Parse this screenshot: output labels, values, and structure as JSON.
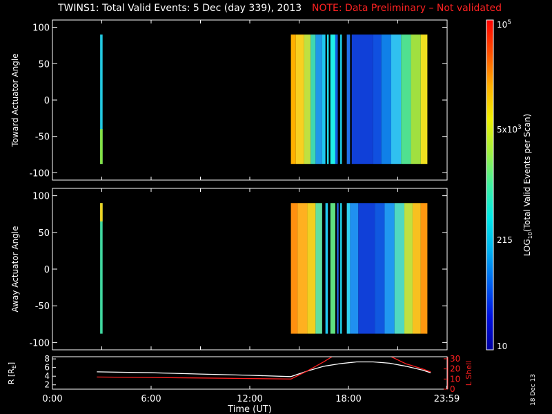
{
  "title": {
    "main": "TWINS1: Total Valid Events:  5 Dec (day 339), 2013",
    "note": "NOTE: Data Preliminary – Not validated"
  },
  "date_stamp": "18 Dec 13",
  "chart_data": [
    {
      "type": "heatmap",
      "panel": "toward",
      "ylabel": "Toward Actuator Angle",
      "ylim": [
        -110,
        110
      ],
      "yticks": [
        100,
        50,
        0,
        -50,
        -100
      ],
      "xlim": [
        0,
        24
      ],
      "bands": [
        {
          "x0": 2.9,
          "x1": 3.05,
          "y0": -88,
          "y1": 90,
          "color": "#22c8e0",
          "bottom_color": "#88e040"
        },
        {
          "x0": 14.5,
          "x1": 14.8,
          "y0": -88,
          "y1": 90,
          "color": "#ffb000"
        },
        {
          "x0": 14.8,
          "x1": 15.3,
          "y0": -88,
          "y1": 90,
          "color": "#f8d020"
        },
        {
          "x0": 15.3,
          "x1": 15.7,
          "y0": -88,
          "y1": 90,
          "color": "#c0e040"
        },
        {
          "x0": 15.7,
          "x1": 16.0,
          "y0": -88,
          "y1": 90,
          "color": "#40d8b0"
        },
        {
          "x0": 16.0,
          "x1": 16.4,
          "y0": -88,
          "y1": 90,
          "color": "#2098e8"
        },
        {
          "x0": 16.4,
          "x1": 16.6,
          "y0": -88,
          "y1": 90,
          "color": "#20c8f0"
        },
        {
          "x0": 16.7,
          "x1": 16.8,
          "y0": -88,
          "y1": 90,
          "color": "#20e0f0"
        },
        {
          "x0": 16.9,
          "x1": 17.2,
          "y0": -88,
          "y1": 90,
          "color": "#20f0e8"
        },
        {
          "x0": 17.2,
          "x1": 17.35,
          "y0": -88,
          "y1": 90,
          "color": "#1060e0"
        },
        {
          "x0": 17.5,
          "x1": 17.6,
          "y0": -88,
          "y1": 90,
          "color": "#20d8f0"
        },
        {
          "x0": 17.9,
          "x1": 18.1,
          "y0": -88,
          "y1": 90,
          "color": "#2070e8"
        },
        {
          "x0": 18.2,
          "x1": 19.5,
          "y0": -88,
          "y1": 90,
          "color": "#1040d8"
        },
        {
          "x0": 19.5,
          "x1": 20.0,
          "y0": -88,
          "y1": 90,
          "color": "#1050e0"
        },
        {
          "x0": 20.0,
          "x1": 20.6,
          "y0": -88,
          "y1": 90,
          "color": "#1080e8"
        },
        {
          "x0": 20.6,
          "x1": 21.2,
          "y0": -88,
          "y1": 90,
          "color": "#30c0f0"
        },
        {
          "x0": 21.2,
          "x1": 21.8,
          "y0": -88,
          "y1": 90,
          "color": "#50e090"
        },
        {
          "x0": 21.8,
          "x1": 22.4,
          "y0": -88,
          "y1": 90,
          "color": "#a0e040"
        },
        {
          "x0": 22.4,
          "x1": 22.8,
          "y0": -88,
          "y1": 90,
          "color": "#f0e020"
        }
      ]
    },
    {
      "type": "heatmap",
      "panel": "away",
      "ylabel": "Away Actuator Angle",
      "ylim": [
        -110,
        110
      ],
      "yticks": [
        100,
        50,
        0,
        -50,
        -100
      ],
      "xlim": [
        0,
        24
      ],
      "bands": [
        {
          "x0": 2.9,
          "x1": 3.05,
          "y0": -88,
          "y1": 90,
          "color": "#40d8a0",
          "top_color": "#f0d020"
        },
        {
          "x0": 14.5,
          "x1": 14.9,
          "y0": -88,
          "y1": 90,
          "color": "#ff9010"
        },
        {
          "x0": 14.9,
          "x1": 15.5,
          "y0": -88,
          "y1": 90,
          "color": "#ffb020"
        },
        {
          "x0": 15.5,
          "x1": 16.0,
          "y0": -88,
          "y1": 90,
          "color": "#f0d020"
        },
        {
          "x0": 16.0,
          "x1": 16.4,
          "y0": -88,
          "y1": 90,
          "color": "#60e0a0"
        },
        {
          "x0": 16.6,
          "x1": 16.75,
          "y0": -88,
          "y1": 90,
          "color": "#20c8f0"
        },
        {
          "x0": 16.9,
          "x1": 17.2,
          "y0": -88,
          "y1": 90,
          "color": "#60e080"
        },
        {
          "x0": 17.3,
          "x1": 17.4,
          "y0": -88,
          "y1": 90,
          "color": "#2060e0"
        },
        {
          "x0": 17.5,
          "x1": 17.6,
          "y0": -88,
          "y1": 90,
          "color": "#20d8f0"
        },
        {
          "x0": 17.9,
          "x1": 18.1,
          "y0": -88,
          "y1": 90,
          "color": "#30d0f0"
        },
        {
          "x0": 18.1,
          "x1": 18.6,
          "y0": -88,
          "y1": 90,
          "color": "#2090f0"
        },
        {
          "x0": 18.6,
          "x1": 19.6,
          "y0": -88,
          "y1": 90,
          "color": "#1040d8"
        },
        {
          "x0": 19.6,
          "x1": 20.2,
          "y0": -88,
          "y1": 90,
          "color": "#1058e0"
        },
        {
          "x0": 20.2,
          "x1": 20.8,
          "y0": -88,
          "y1": 90,
          "color": "#2098f0"
        },
        {
          "x0": 20.8,
          "x1": 21.4,
          "y0": -88,
          "y1": 90,
          "color": "#50d8c0"
        },
        {
          "x0": 21.4,
          "x1": 21.9,
          "y0": -88,
          "y1": 90,
          "color": "#c0e040"
        },
        {
          "x0": 21.9,
          "x1": 22.4,
          "y0": -88,
          "y1": 90,
          "color": "#f8c020"
        },
        {
          "x0": 22.4,
          "x1": 22.8,
          "y0": -88,
          "y1": 90,
          "color": "#ff9810"
        }
      ]
    },
    {
      "type": "line",
      "panel": "orbit",
      "xlabel": "Time (UT)",
      "x_tick_labels": [
        "0:00",
        "6:00",
        "12:00",
        "18:00",
        "23:59"
      ],
      "x_ticks": [
        0,
        6,
        12,
        18,
        23.98
      ],
      "xlim": [
        0,
        24
      ],
      "ylabel_left": "R [R",
      "ylabel_left_sub": "E",
      "ylabel_left_end": "]",
      "ylim_left": [
        1,
        8.5
      ],
      "yticks_left": [
        "8",
        "6",
        "4",
        "2"
      ],
      "yticks_left_values": [
        8,
        6,
        4,
        2
      ],
      "ylabel_right": "L Shell",
      "ylim_right": [
        0,
        32
      ],
      "yticks_right": [
        "30",
        "20",
        "10",
        "0"
      ],
      "yticks_right_values": [
        30,
        20,
        10,
        0
      ],
      "series": [
        {
          "axis": "left",
          "color": "#ffffff",
          "x": [
            2.7,
            6,
            9,
            12,
            14.5,
            15.5,
            16.5,
            17.5,
            18.5,
            19.5,
            20.5,
            21.5,
            22.5,
            23
          ],
          "y": [
            5.0,
            4.8,
            4.5,
            4.2,
            3.9,
            5.2,
            6.3,
            6.9,
            7.3,
            7.3,
            7.0,
            6.3,
            5.4,
            4.8
          ]
        },
        {
          "axis": "right",
          "color": "#ff2020",
          "x": [
            2.7,
            6,
            9,
            12,
            14.5,
            15.5,
            16.5,
            17.0
          ],
          "y": [
            12,
            11.5,
            11,
            10.5,
            10,
            18,
            27,
            32
          ]
        },
        {
          "axis": "right",
          "color": "#ff2020",
          "x": [
            20.6,
            21.5,
            22.5,
            23
          ],
          "y": [
            32,
            25,
            20,
            17
          ]
        }
      ]
    }
  ],
  "colorbar": {
    "label_pre": "LOG",
    "label_sub": "10",
    "label_post": "(Total Valid Events per Scan)",
    "tick_labels": {
      "top": "10",
      "top_exp": "5",
      "mid_high": "5x10",
      "mid_high_exp": "3",
      "mid_low": "215",
      "bottom": "10"
    },
    "colors": [
      "#0000a0",
      "#0010e0",
      "#0060f0",
      "#00b0f0",
      "#00e8e8",
      "#40f0a0",
      "#a0f040",
      "#f0f000",
      "#ffb000",
      "#ff5000",
      "#ff0000"
    ]
  }
}
